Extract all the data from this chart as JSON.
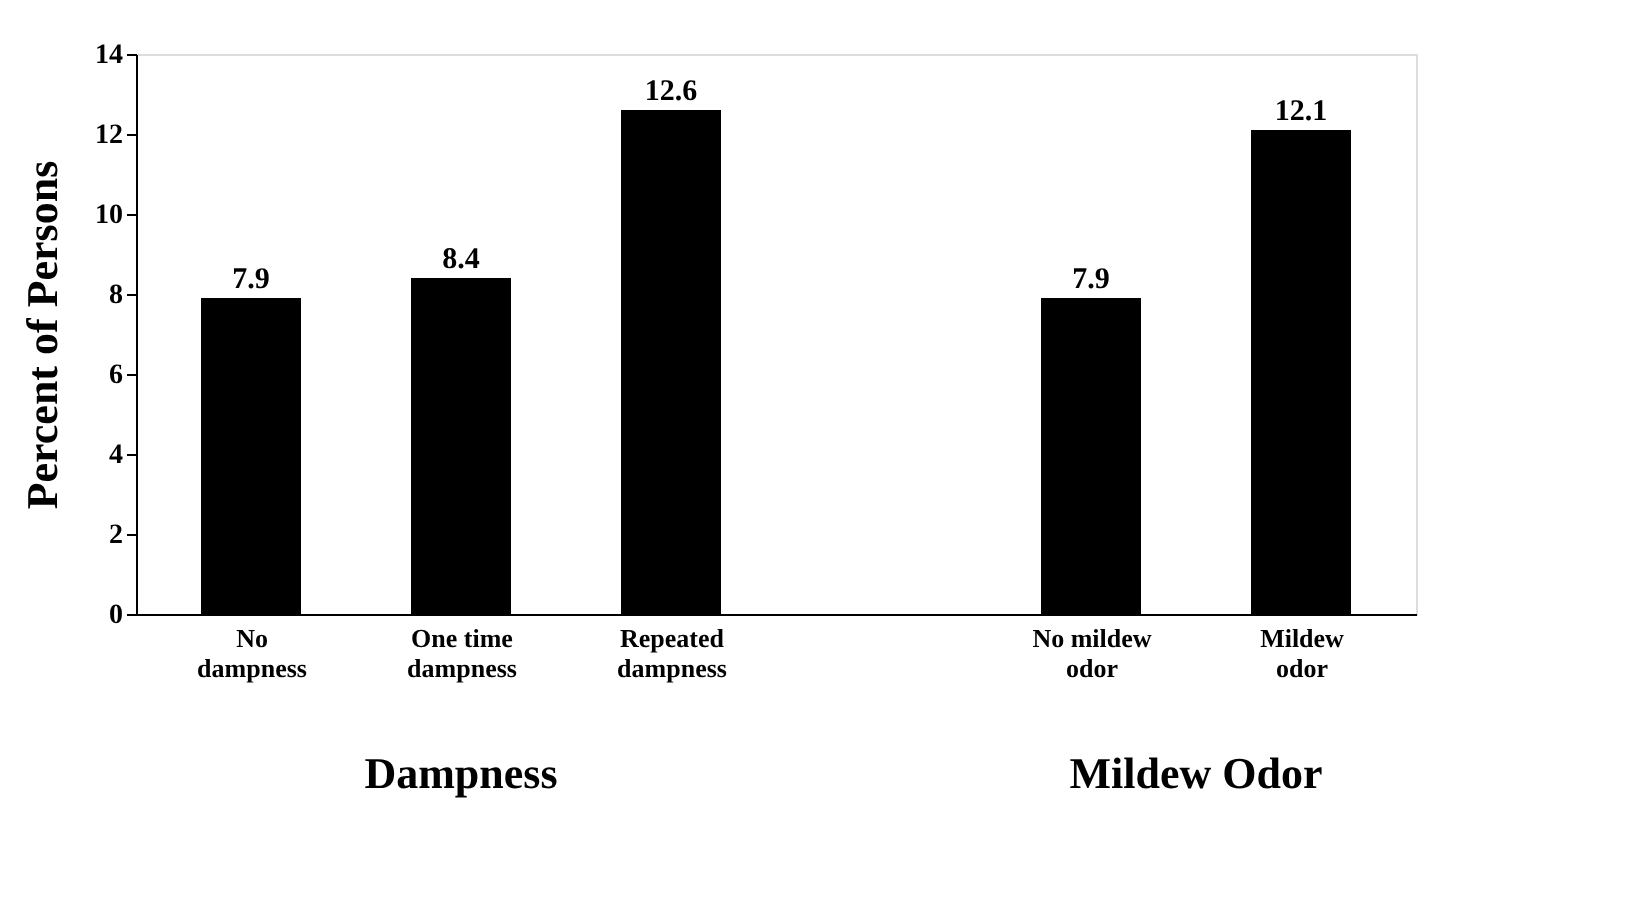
{
  "chart_data": {
    "type": "bar",
    "categories": [
      "No dampness",
      "One time dampness",
      "Repeated dampness",
      null,
      "No mildew odor",
      "Mildew odor"
    ],
    "values": [
      7.9,
      8.4,
      12.6,
      null,
      7.9,
      12.1
    ],
    "color": "#000000",
    "ylabel": "Percent of Persons",
    "ylim": [
      0,
      14
    ],
    "yticks": [
      0,
      2,
      4,
      6,
      8,
      10,
      12,
      14
    ],
    "data_labels": true,
    "grid": false,
    "annotations": [
      "Dampness",
      "Mildew Odor"
    ]
  }
}
